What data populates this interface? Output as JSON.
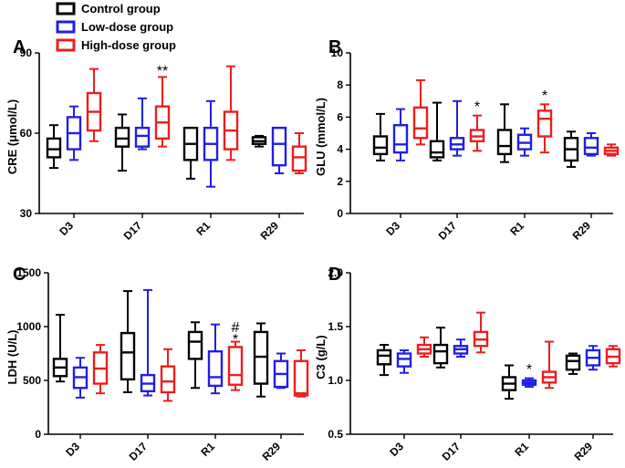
{
  "legend": {
    "items": [
      {
        "label": "Control group",
        "color": "#000000"
      },
      {
        "label": "Low-dose group",
        "color": "#1f1fe6"
      },
      {
        "label": "High-dose group",
        "color": "#ee1c1c"
      }
    ]
  },
  "chart_data": [
    {
      "panel": "A",
      "type": "box",
      "title": "",
      "xlabel": "",
      "ylabel": "CRE (μmol/L)",
      "ylim": [
        30,
        90
      ],
      "yticks": [
        30,
        60,
        90
      ],
      "ytick_labels": [
        "30",
        "60",
        "90"
      ],
      "categories": [
        "D3",
        "D17",
        "R1",
        "R29"
      ],
      "series": [
        {
          "name": "Control group",
          "boxes": [
            {
              "min": 47,
              "q1": 51,
              "median": 54,
              "q3": 58,
              "max": 63
            },
            {
              "min": 46,
              "q1": 55,
              "median": 58,
              "q3": 62,
              "max": 67
            },
            {
              "min": 43,
              "q1": 50,
              "median": 56,
              "q3": 62,
              "max": 62
            },
            {
              "min": 55,
              "q1": 56,
              "median": 57,
              "q3": 58.5,
              "max": 59
            }
          ]
        },
        {
          "name": "Low-dose group",
          "boxes": [
            {
              "min": 50,
              "q1": 54,
              "median": 60,
              "q3": 66,
              "max": 70
            },
            {
              "min": 54,
              "q1": 55,
              "median": 59,
              "q3": 62,
              "max": 73
            },
            {
              "min": 40,
              "q1": 50,
              "median": 56,
              "q3": 62,
              "max": 72
            },
            {
              "min": 45,
              "q1": 48,
              "median": 56,
              "q3": 62,
              "max": 62
            }
          ]
        },
        {
          "name": "High-dose group",
          "boxes": [
            {
              "min": 57,
              "q1": 61,
              "median": 68,
              "q3": 75,
              "max": 84
            },
            {
              "min": 55,
              "q1": 58,
              "median": 64,
              "q3": 70,
              "max": 81
            },
            {
              "min": 50,
              "q1": 54,
              "median": 61,
              "q3": 68,
              "max": 85
            },
            {
              "min": 45,
              "q1": 46,
              "median": 51,
              "q3": 55,
              "max": 60
            }
          ]
        }
      ],
      "annotations": [
        {
          "text": "**",
          "category": "D17",
          "series": "High-dose group",
          "y": 83.5
        }
      ]
    },
    {
      "panel": "B",
      "type": "box",
      "title": "",
      "xlabel": "",
      "ylabel": "GLU (mmol/L)",
      "ylim": [
        0,
        10
      ],
      "yticks": [
        0,
        2,
        4,
        6,
        8,
        10
      ],
      "ytick_labels": [
        "0",
        "2",
        "4",
        "6",
        "8",
        "10"
      ],
      "categories": [
        "D3",
        "D17",
        "R1",
        "R29"
      ],
      "series": [
        {
          "name": "Control group",
          "boxes": [
            {
              "min": 3.3,
              "q1": 3.7,
              "median": 4.1,
              "q3": 4.8,
              "max": 6.2
            },
            {
              "min": 3.3,
              "q1": 3.5,
              "median": 3.8,
              "q3": 4.5,
              "max": 6.9
            },
            {
              "min": 3.2,
              "q1": 3.7,
              "median": 4.2,
              "q3": 5.2,
              "max": 6.8
            },
            {
              "min": 2.9,
              "q1": 3.3,
              "median": 4.0,
              "q3": 4.7,
              "max": 5.1
            }
          ]
        },
        {
          "name": "Low-dose group",
          "boxes": [
            {
              "min": 3.3,
              "q1": 3.8,
              "median": 4.3,
              "q3": 5.5,
              "max": 6.5
            },
            {
              "min": 3.6,
              "q1": 4.0,
              "median": 4.3,
              "q3": 4.7,
              "max": 7.0
            },
            {
              "min": 3.6,
              "q1": 4.0,
              "median": 4.4,
              "q3": 4.9,
              "max": 5.3
            },
            {
              "min": 3.6,
              "q1": 3.7,
              "median": 4.1,
              "q3": 4.7,
              "max": 5.0
            }
          ]
        },
        {
          "name": "High-dose group",
          "boxes": [
            {
              "min": 4.3,
              "q1": 4.7,
              "median": 5.3,
              "q3": 6.6,
              "max": 8.3
            },
            {
              "min": 3.9,
              "q1": 4.5,
              "median": 4.8,
              "q3": 5.2,
              "max": 6.1
            },
            {
              "min": 3.8,
              "q1": 4.8,
              "median": 5.9,
              "q3": 6.4,
              "max": 6.8
            },
            {
              "min": 3.6,
              "q1": 3.7,
              "median": 3.9,
              "q3": 4.1,
              "max": 4.3
            }
          ]
        }
      ],
      "annotations": [
        {
          "text": "*",
          "category": "D17",
          "series": "High-dose group",
          "y": 6.7
        },
        {
          "text": "*",
          "category": "R1",
          "series": "High-dose group",
          "y": 7.4
        }
      ]
    },
    {
      "panel": "C",
      "type": "box",
      "title": "",
      "xlabel": "",
      "ylabel": "LDH (U/L)",
      "ylim": [
        0,
        1500
      ],
      "yticks": [
        0,
        500,
        1000,
        1500
      ],
      "ytick_labels": [
        "0",
        "500",
        "1000",
        "1500"
      ],
      "categories": [
        "D3",
        "D17",
        "R1",
        "R29"
      ],
      "series": [
        {
          "name": "Control group",
          "boxes": [
            {
              "min": 490,
              "q1": 540,
              "median": 620,
              "q3": 700,
              "max": 1110
            },
            {
              "min": 390,
              "q1": 510,
              "median": 760,
              "q3": 940,
              "max": 1330
            },
            {
              "min": 430,
              "q1": 700,
              "median": 860,
              "q3": 950,
              "max": 1040
            },
            {
              "min": 350,
              "q1": 470,
              "median": 720,
              "q3": 950,
              "max": 1030
            }
          ]
        },
        {
          "name": "Low-dose group",
          "boxes": [
            {
              "min": 340,
              "q1": 430,
              "median": 530,
              "q3": 620,
              "max": 710
            },
            {
              "min": 360,
              "q1": 400,
              "median": 470,
              "q3": 550,
              "max": 1340
            },
            {
              "min": 380,
              "q1": 450,
              "median": 530,
              "q3": 770,
              "max": 1020
            },
            {
              "min": 430,
              "q1": 440,
              "median": 560,
              "q3": 680,
              "max": 750
            }
          ]
        },
        {
          "name": "High-dose group",
          "boxes": [
            {
              "min": 380,
              "q1": 470,
              "median": 610,
              "q3": 760,
              "max": 830
            },
            {
              "min": 310,
              "q1": 390,
              "median": 490,
              "q3": 630,
              "max": 790
            },
            {
              "min": 410,
              "q1": 460,
              "median": 550,
              "q3": 810,
              "max": 860
            },
            {
              "min": 350,
              "q1": 360,
              "median": 380,
              "q3": 680,
              "max": 780
            }
          ]
        }
      ],
      "annotations": [
        {
          "text": "#",
          "category": "R1",
          "series": "High-dose group",
          "y": 1000
        },
        {
          "text": "*",
          "category": "R1",
          "series": "High-dose group",
          "y": 890
        }
      ]
    },
    {
      "panel": "D",
      "type": "box",
      "title": "",
      "xlabel": "",
      "ylabel": "C3 (g/L)",
      "ylim": [
        0.5,
        2.0
      ],
      "yticks": [
        0.5,
        1.0,
        1.5,
        2.0
      ],
      "ytick_labels": [
        "0.5",
        "1.0",
        "1.5",
        "2.0"
      ],
      "categories": [
        "D3",
        "D17",
        "R1",
        "R29"
      ],
      "series": [
        {
          "name": "Control group",
          "boxes": [
            {
              "min": 1.05,
              "q1": 1.15,
              "median": 1.23,
              "q3": 1.28,
              "max": 1.33
            },
            {
              "min": 1.12,
              "q1": 1.16,
              "median": 1.27,
              "q3": 1.33,
              "max": 1.49
            },
            {
              "min": 0.83,
              "q1": 0.91,
              "median": 0.97,
              "q3": 1.03,
              "max": 1.14
            },
            {
              "min": 1.06,
              "q1": 1.1,
              "median": 1.18,
              "q3": 1.23,
              "max": 1.25
            }
          ]
        },
        {
          "name": "Low-dose group",
          "boxes": [
            {
              "min": 1.07,
              "q1": 1.13,
              "median": 1.2,
              "q3": 1.25,
              "max": 1.28
            },
            {
              "min": 1.22,
              "q1": 1.25,
              "median": 1.29,
              "q3": 1.32,
              "max": 1.38
            },
            {
              "min": 0.94,
              "q1": 0.96,
              "median": 0.98,
              "q3": 1.0,
              "max": 1.02
            },
            {
              "min": 1.1,
              "q1": 1.14,
              "median": 1.21,
              "q3": 1.28,
              "max": 1.32
            }
          ]
        },
        {
          "name": "High-dose group",
          "boxes": [
            {
              "min": 1.22,
              "q1": 1.25,
              "median": 1.29,
              "q3": 1.33,
              "max": 1.4
            },
            {
              "min": 1.26,
              "q1": 1.32,
              "median": 1.38,
              "q3": 1.45,
              "max": 1.63
            },
            {
              "min": 0.93,
              "q1": 0.98,
              "median": 1.03,
              "q3": 1.08,
              "max": 1.36
            },
            {
              "min": 1.13,
              "q1": 1.16,
              "median": 1.22,
              "q3": 1.29,
              "max": 1.32
            }
          ]
        }
      ],
      "annotations": [
        {
          "text": "*",
          "category": "R1",
          "series": "Low-dose group",
          "y": 1.11
        }
      ]
    }
  ]
}
